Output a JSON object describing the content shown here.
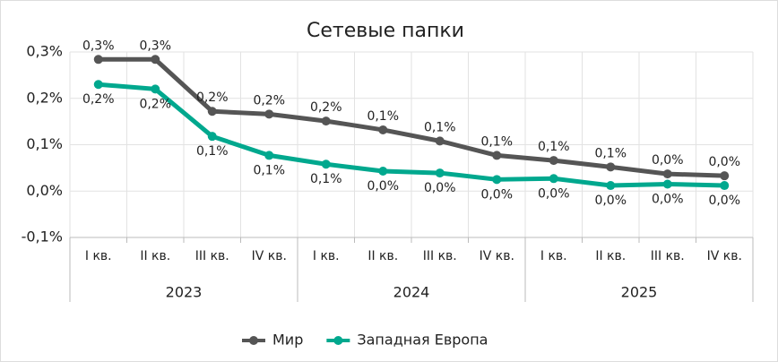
{
  "chart_data": {
    "type": "line",
    "title": "Сетевые папки",
    "categories": [
      "I кв.",
      "II кв.",
      "III кв.",
      "IV кв.",
      "I кв.",
      "II кв.",
      "III кв.",
      "IV кв.",
      "I кв.",
      "II кв.",
      "III кв.",
      "IV кв."
    ],
    "groups": [
      "2023",
      "2024",
      "2025"
    ],
    "series": [
      {
        "name": "Мир",
        "color": "#555555",
        "values": [
          0.284,
          0.284,
          0.172,
          0.166,
          0.151,
          0.132,
          0.108,
          0.077,
          0.066,
          0.052,
          0.037,
          0.033
        ],
        "value_labels": [
          "0,3%",
          "0,3%",
          "0,2%",
          "0,2%",
          "0,2%",
          "0,1%",
          "0,1%",
          "0,1%",
          "0,1%",
          "0,1%",
          "0,0%",
          "0,0%"
        ]
      },
      {
        "name": "Западная Европа",
        "color": "#00a88e",
        "values": [
          0.23,
          0.22,
          0.118,
          0.077,
          0.058,
          0.043,
          0.039,
          0.025,
          0.027,
          0.012,
          0.015,
          0.012
        ],
        "value_labels": [
          "0,2%",
          "0,2%",
          "0,1%",
          "0,1%",
          "0,1%",
          "0,0%",
          "0,0%",
          "0,0%",
          "0,0%",
          "0,0%",
          "0,0%",
          "0,0%"
        ]
      }
    ],
    "ylim": [
      -0.1,
      0.3
    ],
    "yticks": [
      {
        "value": -0.1,
        "label": "-0,1%"
      },
      {
        "value": 0,
        "label": "0,0%"
      },
      {
        "value": 0.1,
        "label": "0,1%"
      },
      {
        "value": 0.2,
        "label": "0,2%"
      },
      {
        "value": 0.3,
        "label": "0,3%"
      }
    ],
    "grid": true,
    "legend": "bottom"
  }
}
